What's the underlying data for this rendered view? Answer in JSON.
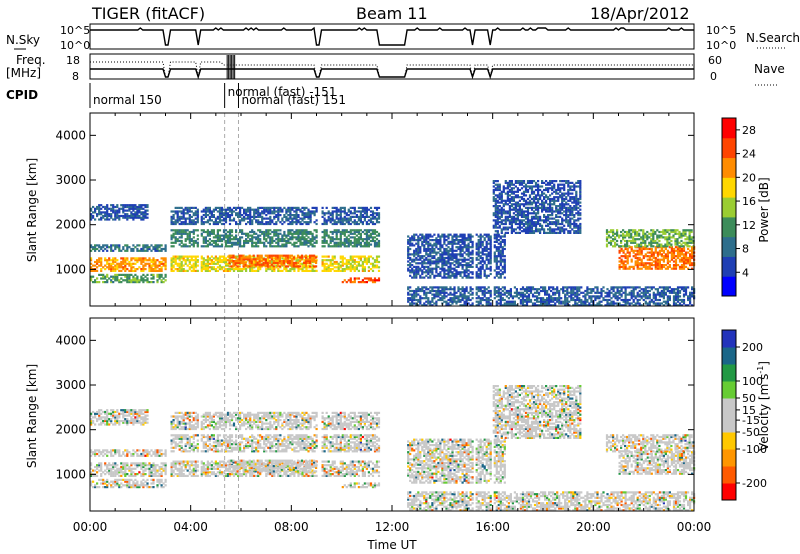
{
  "header": {
    "station": "TIGER (fitACF)",
    "beam": "Beam 11",
    "date": "18/Apr/2012"
  },
  "status_panels": {
    "nsky_label": "N.Sky",
    "nsky_ticks": [
      "10^5",
      "10^0"
    ],
    "nsearch_label": "N.Search",
    "freq_label": "Freq.",
    "freq_unit": "[MHz]",
    "freq_ticks": [
      "18",
      "8"
    ],
    "nave_label": "Nave",
    "nave_ticks": [
      "60",
      "0"
    ],
    "cpid_label": "CPID",
    "cpid_modes": [
      {
        "name": "normal 150",
        "start_hour": 0.0
      },
      {
        "name": "normal (fast) -151",
        "start_hour": 5.35
      },
      {
        "name": "normal (fast) 151",
        "start_hour": 5.9
      }
    ],
    "data_gaps_hours": [
      [
        3.0,
        3.2
      ],
      [
        4.3,
        4.4
      ],
      [
        9.0,
        9.15
      ],
      [
        11.5,
        12.6
      ],
      [
        15.2,
        15.3
      ],
      [
        15.9,
        16.0
      ]
    ]
  },
  "colors": {
    "power_scale": [
      "#0000ff",
      "#1f3fb4",
      "#2e6e8c",
      "#3c8c5a",
      "#9acd32",
      "#ffd700",
      "#ff8c00",
      "#ff4500",
      "#ff0000"
    ],
    "velocity_scale": [
      "#ff0000",
      "#ff5a00",
      "#ff9600",
      "#ffc800",
      "#c8c8c8",
      "#c8c8c8",
      "#66cc33",
      "#229944",
      "#1a6688",
      "#2233bb"
    ]
  },
  "chart_data": [
    {
      "type": "heatmap",
      "name": "power",
      "xlabel": "",
      "ylabel": "Slant Range [km]",
      "ylim": [
        180,
        4500
      ],
      "xlim_hours": [
        0,
        24
      ],
      "yticks": [
        "1000",
        "2000",
        "3000",
        "4000"
      ],
      "colorbar_label": "Power [dB]",
      "colorbar_ticks": [
        "4",
        "8",
        "12",
        "16",
        "20",
        "24",
        "28"
      ],
      "colorbar_range": [
        0,
        30
      ],
      "echo_regions": [
        {
          "t0": 0.0,
          "t1": 3.0,
          "r0": 950,
          "r1": 1250,
          "level": 22
        },
        {
          "t0": 0.0,
          "t1": 3.0,
          "r0": 700,
          "r1": 900,
          "level": 12
        },
        {
          "t0": 0.0,
          "t1": 3.0,
          "r0": 1400,
          "r1": 1550,
          "level": 8
        },
        {
          "t0": 0.0,
          "t1": 2.3,
          "r0": 2100,
          "r1": 2450,
          "level": 5
        },
        {
          "t0": 3.2,
          "t1": 11.5,
          "r0": 950,
          "r1": 1300,
          "level": 18
        },
        {
          "t0": 3.2,
          "t1": 11.5,
          "r0": 1500,
          "r1": 1900,
          "level": 10
        },
        {
          "t0": 3.2,
          "t1": 11.5,
          "r0": 2000,
          "r1": 2400,
          "level": 6
        },
        {
          "t0": 5.5,
          "t1": 9.0,
          "r0": 1050,
          "r1": 1300,
          "level": 24
        },
        {
          "t0": 10.0,
          "t1": 11.5,
          "r0": 700,
          "r1": 800,
          "level": 26
        },
        {
          "t0": 12.6,
          "t1": 24.0,
          "r0": 180,
          "r1": 600,
          "level": 6
        },
        {
          "t0": 12.6,
          "t1": 16.5,
          "r0": 800,
          "r1": 1800,
          "level": 5
        },
        {
          "t0": 16.0,
          "t1": 19.5,
          "r0": 1800,
          "r1": 3000,
          "level": 5
        },
        {
          "t0": 21.0,
          "t1": 24.0,
          "r0": 1000,
          "r1": 1500,
          "level": 24
        },
        {
          "t0": 20.5,
          "t1": 24.0,
          "r0": 1500,
          "r1": 1900,
          "level": 13
        }
      ]
    },
    {
      "type": "heatmap",
      "name": "velocity",
      "xlabel": "Time UT",
      "ylabel": "Slant Range [km]",
      "ylim": [
        180,
        4500
      ],
      "xlim_hours": [
        0,
        24
      ],
      "xticks": [
        "00:00",
        "04:00",
        "08:00",
        "12:00",
        "16:00",
        "20:00",
        "00:00"
      ],
      "yticks": [
        "1000",
        "2000",
        "3000",
        "4000"
      ],
      "colorbar_label": "Velocity [m s",
      "colorbar_unit_sup": "-1",
      "colorbar_ticks": [
        "200",
        "100",
        "50",
        "15",
        "-15",
        "-50",
        "-100",
        "-200"
      ],
      "colorbar_range": [
        -250,
        250
      ]
    }
  ]
}
